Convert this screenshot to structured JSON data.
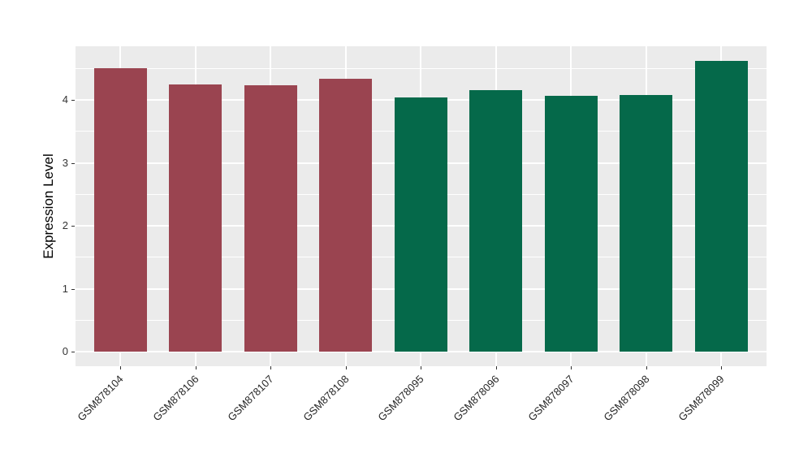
{
  "chart_data": {
    "type": "bar",
    "title": "",
    "xlabel": "",
    "ylabel": "Expression Level",
    "ylim": [
      0,
      4.85
    ],
    "yticks": [
      0,
      1,
      2,
      3,
      4
    ],
    "grid": true,
    "legend_position": "none",
    "panel_background": "#EBEBEB",
    "gridline_color": "#FFFFFF",
    "categories": [
      "GSM878104",
      "GSM878106",
      "GSM878107",
      "GSM878108",
      "GSM878095",
      "GSM878096",
      "GSM878097",
      "GSM878098",
      "GSM878099"
    ],
    "values": [
      4.5,
      4.24,
      4.23,
      4.33,
      4.04,
      4.16,
      4.07,
      4.08,
      4.62
    ],
    "bar_colors": [
      "#9A4450",
      "#9A4450",
      "#9A4450",
      "#9A4450",
      "#05694A",
      "#05694A",
      "#05694A",
      "#05694A",
      "#05694A"
    ],
    "group_colors": {
      "maroon_group": "#9A4450",
      "green_group": "#05694A"
    }
  }
}
